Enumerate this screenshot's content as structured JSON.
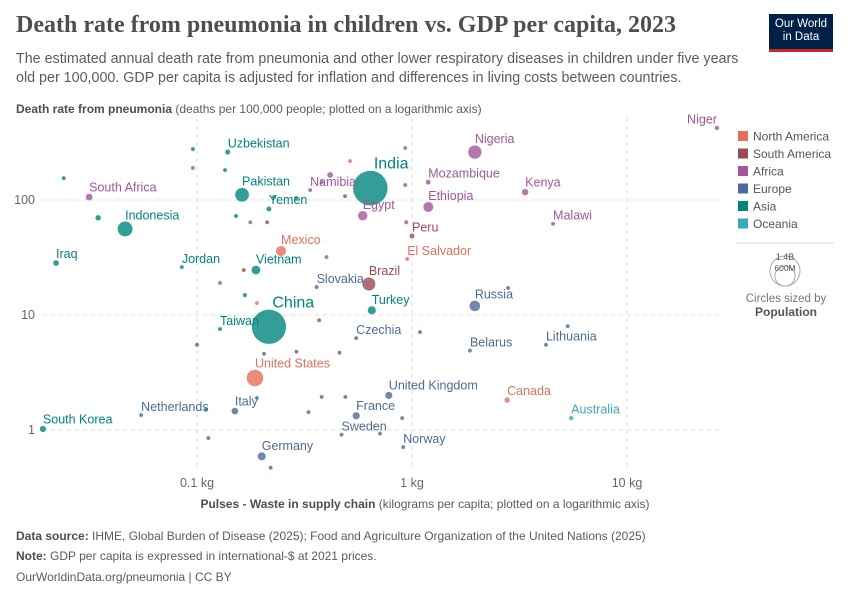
{
  "header": {
    "title": "Death rate from pneumonia in children vs. GDP per capita, 2023",
    "subtitle": "The estimated annual death rate from pneumonia and other lower respiratory diseases in children under five years old per 100,000. GDP per capita is adjusted for inflation and differences in living costs between countries.",
    "logo_text": "Our World in Data"
  },
  "footer": {
    "source_label": "Data source:",
    "source_text": "IHME, Global Burden of Disease (2025); Food and Agriculture Organization of the United Nations (2025)",
    "note_label": "Note:",
    "note_text": "GDP per capita is expressed in international-$ at 2021 prices.",
    "url": "OurWorldinData.org/pneumonia | CC BY"
  },
  "chart_data": {
    "type": "scatter",
    "title": "Death rate from pneumonia in children vs. GDP per capita, 2023",
    "ylabel_bold": "Death rate from pneumonia",
    "ylabel_rest": " (deaths per 100,000 people; plotted on a logarithmic axis)",
    "xlabel_bold": "Pulses - Waste in supply chain",
    "xlabel_rest": " (kilograms per capita; plotted on a logarithmic axis)",
    "x_scale": "log",
    "y_scale": "log",
    "xlim": [
      0.016,
      28
    ],
    "ylim": [
      0.42,
      480
    ],
    "x_ticks": [
      {
        "value": 0.1,
        "label": "0.1 kg"
      },
      {
        "value": 1,
        "label": "1 kg"
      },
      {
        "value": 10,
        "label": "10 kg"
      }
    ],
    "y_ticks": [
      {
        "value": 1,
        "label": "1"
      },
      {
        "value": 10,
        "label": "10"
      },
      {
        "value": 100,
        "label": "100"
      }
    ],
    "grid": true,
    "legend_placement": "right",
    "regions": [
      {
        "name": "North America",
        "color": "#E56E5A"
      },
      {
        "name": "South America",
        "color": "#9A4A52"
      },
      {
        "name": "Africa",
        "color": "#A2559C"
      },
      {
        "name": "Europe",
        "color": "#4C6A9C"
      },
      {
        "name": "Asia",
        "color": "#00847E"
      },
      {
        "name": "Oceania",
        "color": "#38AABA"
      }
    ],
    "size_legend": {
      "title": "Circles sized by",
      "variable": "Population",
      "large": "1.4B",
      "small": "600M",
      "large_value": 1400,
      "small_value": 600
    },
    "points": [
      {
        "name": "Niger",
        "x": 26.2,
        "y": 423,
        "region": "Africa",
        "pop": 27
      },
      {
        "name": "Nigeria",
        "x": 1.96,
        "y": 261,
        "region": "Africa",
        "pop": 225
      },
      {
        "name": "India",
        "x": 0.64,
        "y": 127,
        "region": "Asia",
        "pop": 1430
      },
      {
        "name": "Kenya",
        "x": 3.36,
        "y": 117,
        "region": "Africa",
        "pop": 55
      },
      {
        "name": "Mozambique",
        "x": 1.19,
        "y": 143,
        "region": "Africa",
        "pop": 33
      },
      {
        "name": "Ethiopia",
        "x": 1.19,
        "y": 87,
        "region": "Africa",
        "pop": 126
      },
      {
        "name": "Malawi",
        "x": 4.53,
        "y": 62,
        "region": "Africa",
        "pop": 21
      },
      {
        "name": "Egypt",
        "x": 0.59,
        "y": 73,
        "region": "Africa",
        "pop": 113
      },
      {
        "name": "Namibia",
        "x": 0.336,
        "y": 122,
        "region": "Africa",
        "pop": 3
      },
      {
        "name": "Pakistan",
        "x": 0.162,
        "y": 111,
        "region": "Asia",
        "pop": 240
      },
      {
        "name": "Yemen",
        "x": 0.216,
        "y": 83.6,
        "region": "Asia",
        "pop": 34
      },
      {
        "name": "Uzbekistan",
        "x": 0.139,
        "y": 261,
        "region": "Asia",
        "pop": 36
      },
      {
        "name": "South Africa",
        "x": 0.0315,
        "y": 106,
        "region": "Africa",
        "pop": 61
      },
      {
        "name": "Indonesia",
        "x": 0.0463,
        "y": 56,
        "region": "Asia",
        "pop": 277
      },
      {
        "name": "Iraq",
        "x": 0.0221,
        "y": 28.3,
        "region": "Asia",
        "pop": 45
      },
      {
        "name": "Jordan",
        "x": 0.085,
        "y": 26.1,
        "region": "Asia",
        "pop": 11
      },
      {
        "name": "Vietnam",
        "x": 0.188,
        "y": 24.6,
        "region": "Asia",
        "pop": 99
      },
      {
        "name": "Mexico",
        "x": 0.246,
        "y": 36,
        "region": "North America",
        "pop": 129
      },
      {
        "name": "Peru",
        "x": 1.0,
        "y": 48.6,
        "region": "South America",
        "pop": 34
      },
      {
        "name": "El Salvador",
        "x": 0.95,
        "y": 30.7,
        "region": "North America",
        "pop": 6
      },
      {
        "name": "Brazil",
        "x": 0.63,
        "y": 18.6,
        "region": "South America",
        "pop": 216
      },
      {
        "name": "Slovakia",
        "x": 0.36,
        "y": 17.5,
        "region": "Europe",
        "pop": 5
      },
      {
        "name": "Turkey",
        "x": 0.65,
        "y": 11,
        "region": "Asia",
        "pop": 86
      },
      {
        "name": "China",
        "x": 0.216,
        "y": 7.9,
        "region": "Asia",
        "pop": 1410
      },
      {
        "name": "Taiwan",
        "x": 0.128,
        "y": 7.55,
        "region": "Asia",
        "pop": 23
      },
      {
        "name": "Russia",
        "x": 1.96,
        "y": 12,
        "region": "Europe",
        "pop": 144
      },
      {
        "name": "Czechia",
        "x": 0.55,
        "y": 6.3,
        "region": "Europe",
        "pop": 11
      },
      {
        "name": "Belarus",
        "x": 1.86,
        "y": 4.9,
        "region": "Europe",
        "pop": 9
      },
      {
        "name": "Lithuania",
        "x": 4.2,
        "y": 5.5,
        "region": "Europe",
        "pop": 3
      },
      {
        "name": "United States",
        "x": 0.186,
        "y": 2.83,
        "region": "North America",
        "pop": 335
      },
      {
        "name": "United Kingdom",
        "x": 0.78,
        "y": 2.0,
        "region": "Europe",
        "pop": 68
      },
      {
        "name": "Canada",
        "x": 2.77,
        "y": 1.82,
        "region": "North America",
        "pop": 39
      },
      {
        "name": "Australia",
        "x": 5.5,
        "y": 1.27,
        "region": "Oceania",
        "pop": 27
      },
      {
        "name": "France",
        "x": 0.55,
        "y": 1.33,
        "region": "Europe",
        "pop": 68
      },
      {
        "name": "Italy",
        "x": 0.15,
        "y": 1.46,
        "region": "Europe",
        "pop": 59
      },
      {
        "name": "Netherlands",
        "x": 0.055,
        "y": 1.35,
        "region": "Europe",
        "pop": 18
      },
      {
        "name": "South Korea",
        "x": 0.0192,
        "y": 1.02,
        "region": "Asia",
        "pop": 52
      },
      {
        "name": "Sweden",
        "x": 0.47,
        "y": 0.91,
        "region": "Europe",
        "pop": 10
      },
      {
        "name": "Norway",
        "x": 0.91,
        "y": 0.71,
        "region": "Europe",
        "pop": 5
      },
      {
        "name": "Germany",
        "x": 0.2,
        "y": 0.59,
        "region": "Europe",
        "pop": 84
      },
      {
        "x": 0.024,
        "y": 155,
        "region": "Asia",
        "pop": 20
      },
      {
        "x": 0.0347,
        "y": 70,
        "region": "Asia",
        "pop": 40
      },
      {
        "x": 0.0957,
        "y": 277,
        "region": "Asia",
        "pop": 5
      },
      {
        "x": 0.0957,
        "y": 190,
        "region": "Africa",
        "pop": 8
      },
      {
        "x": 0.135,
        "y": 182,
        "region": "Asia",
        "pop": 4
      },
      {
        "x": 0.152,
        "y": 72.6,
        "region": "Asia",
        "pop": 20
      },
      {
        "x": 0.177,
        "y": 64,
        "region": "Africa",
        "pop": 15
      },
      {
        "x": 0.212,
        "y": 64,
        "region": "South America",
        "pop": 12
      },
      {
        "x": 0.228,
        "y": 106,
        "region": "Asia",
        "pop": 4
      },
      {
        "x": 0.289,
        "y": 104,
        "region": "Asia",
        "pop": 4
      },
      {
        "x": 0.38,
        "y": 143,
        "region": "Africa",
        "pop": 15
      },
      {
        "x": 0.416,
        "y": 165,
        "region": "Africa",
        "pop": 45
      },
      {
        "x": 0.515,
        "y": 218,
        "region": "North America",
        "pop": 5
      },
      {
        "x": 0.488,
        "y": 108,
        "region": "South America",
        "pop": 5
      },
      {
        "x": 0.93,
        "y": 283,
        "region": "Africa",
        "pop": 5
      },
      {
        "x": 0.93,
        "y": 135,
        "region": "Africa",
        "pop": 5
      },
      {
        "x": 0.94,
        "y": 64,
        "region": "Africa",
        "pop": 25
      },
      {
        "x": 0.128,
        "y": 19,
        "region": "Africa",
        "pop": 15
      },
      {
        "x": 0.165,
        "y": 24.6,
        "region": "South America",
        "pop": 20
      },
      {
        "x": 0.167,
        "y": 14.9,
        "region": "Asia",
        "pop": 25
      },
      {
        "x": 0.19,
        "y": 12.7,
        "region": "North America",
        "pop": 4
      },
      {
        "x": 0.4,
        "y": 31.9,
        "region": "Africa",
        "pop": 12
      },
      {
        "x": 0.37,
        "y": 9,
        "region": "South America",
        "pop": 12
      },
      {
        "x": 0.1,
        "y": 5.5,
        "region": "South America",
        "pop": 4
      },
      {
        "x": 0.29,
        "y": 4.8,
        "region": "South America",
        "pop": 4
      },
      {
        "x": 0.46,
        "y": 4.7,
        "region": "Europe",
        "pop": 10
      },
      {
        "x": 0.205,
        "y": 4.6,
        "region": "Europe",
        "pop": 3
      },
      {
        "x": 1.09,
        "y": 7.1,
        "region": "Europe",
        "pop": 3
      },
      {
        "x": 5.3,
        "y": 8,
        "region": "Europe",
        "pop": 3
      },
      {
        "x": 2.8,
        "y": 17.2,
        "region": "Europe",
        "pop": 3
      },
      {
        "x": 0.9,
        "y": 1.27,
        "region": "Europe",
        "pop": 20
      },
      {
        "x": 0.38,
        "y": 1.94,
        "region": "Europe",
        "pop": 3
      },
      {
        "x": 0.49,
        "y": 1.94,
        "region": "Europe",
        "pop": 3
      },
      {
        "x": 0.33,
        "y": 1.43,
        "region": "Europe",
        "pop": 3
      },
      {
        "x": 0.113,
        "y": 0.85,
        "region": "Europe",
        "pop": 3
      },
      {
        "x": 0.71,
        "y": 0.93,
        "region": "Europe",
        "pop": 3
      },
      {
        "x": 0.22,
        "y": 0.47,
        "region": "Europe",
        "pop": 3
      },
      {
        "x": 0.11,
        "y": 1.5,
        "region": "Asia",
        "pop": 2
      },
      {
        "x": 0.19,
        "y": 1.9,
        "region": "Europe",
        "pop": 2
      }
    ]
  }
}
